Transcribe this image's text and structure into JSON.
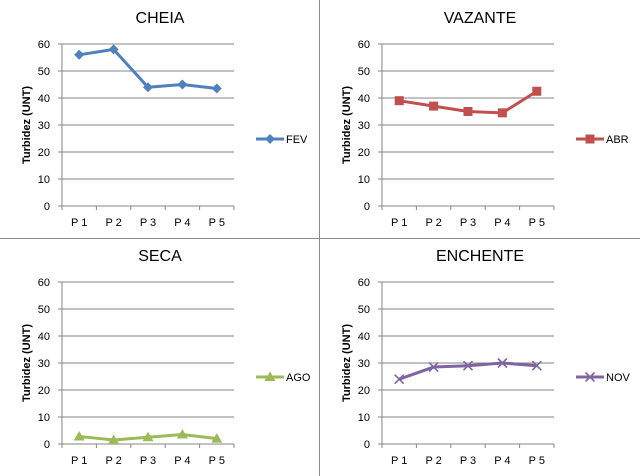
{
  "chart_data": [
    {
      "type": "line",
      "title": "CHEIA",
      "ylabel": "Turbidez (UNT)",
      "xlabel": "",
      "categories": [
        "P 1",
        "P 2",
        "P 3",
        "P 4",
        "P 5"
      ],
      "series": [
        {
          "name": "FEV",
          "values": [
            56,
            58,
            44,
            45,
            43.5
          ],
          "color": "#4f81bd",
          "marker": "diamond"
        }
      ],
      "ylim": [
        0,
        60
      ],
      "yticks": [
        0,
        10,
        20,
        30,
        40,
        50,
        60
      ],
      "grid": true,
      "legend": "right"
    },
    {
      "type": "line",
      "title": "VAZANTE",
      "ylabel": "Turbidez (UNT)",
      "xlabel": "",
      "categories": [
        "P 1",
        "P 2",
        "P 3",
        "P 4",
        "P 5"
      ],
      "series": [
        {
          "name": "ABR",
          "values": [
            39,
            37,
            35,
            34.5,
            42.5
          ],
          "color": "#c0504d",
          "marker": "square"
        }
      ],
      "ylim": [
        0,
        60
      ],
      "yticks": [
        0,
        10,
        20,
        30,
        40,
        50,
        60
      ],
      "grid": true,
      "legend": "right"
    },
    {
      "type": "line",
      "title": "SECA",
      "ylabel": "Turbidez (UNT)",
      "xlabel": "",
      "categories": [
        "P 1",
        "P 2",
        "P 3",
        "P 4",
        "P 5"
      ],
      "series": [
        {
          "name": "AGO",
          "values": [
            2.8,
            1.5,
            2.5,
            3.5,
            2
          ],
          "color": "#9bbb59",
          "marker": "triangle"
        }
      ],
      "ylim": [
        0,
        60
      ],
      "yticks": [
        0,
        10,
        20,
        30,
        40,
        50,
        60
      ],
      "grid": true,
      "legend": "right"
    },
    {
      "type": "line",
      "title": "ENCHENTE",
      "ylabel": "Turbidez (UNT)",
      "xlabel": "",
      "categories": [
        "P 1",
        "P 2",
        "P 3",
        "P 4",
        "P 5"
      ],
      "series": [
        {
          "name": "NOV",
          "values": [
            24,
            28.5,
            29,
            30,
            29
          ],
          "color": "#8064a2",
          "marker": "x"
        }
      ],
      "ylim": [
        0,
        60
      ],
      "yticks": [
        0,
        10,
        20,
        30,
        40,
        50,
        60
      ],
      "grid": true,
      "legend": "right"
    }
  ]
}
